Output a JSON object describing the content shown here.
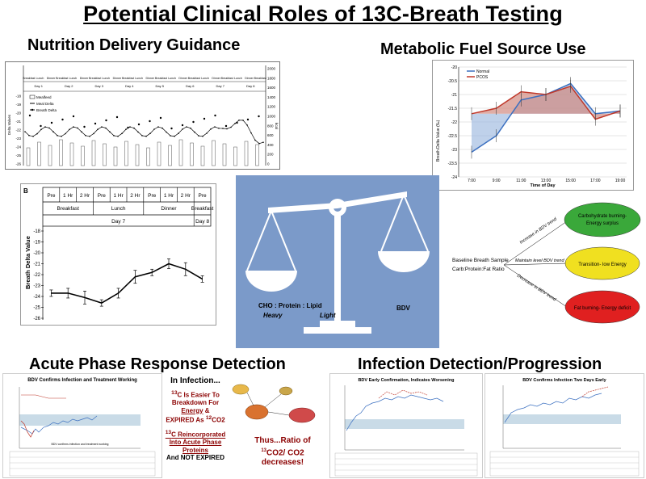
{
  "title": "Potential Clinical Roles of 13C-Breath Testing",
  "sections": {
    "nutrition": "Nutrition Delivery Guidance",
    "fuel": "Metabolic Fuel Source Use",
    "acute": "Acute Phase Response Detection",
    "infection": "Infection Detection/Progression"
  },
  "nutrition_chart": {
    "meals": [
      "Breakfast",
      "Lunch",
      "Dinner",
      "Breakfast",
      "Lunch",
      "Dinner",
      "Breakfast",
      "Lunch",
      "Dinner",
      "Breakfast",
      "Lunch",
      "Dinner",
      "Breakfast",
      "Lunch",
      "Dinner",
      "Breakfast",
      "Lunch",
      "Dinner",
      "Breakfast",
      "Lunch",
      "Dinner",
      "Breakfast"
    ],
    "days": [
      "Day 1",
      "Day 2",
      "Day 3",
      "Day 4",
      "Day 5",
      "Day 6",
      "Day 7",
      "Day 8"
    ],
    "legend": [
      "Mealfeed",
      "Meal Delta",
      "Breath Delta"
    ],
    "ylabel": "Delta Values",
    "y_ticks": [
      "-18",
      "-19",
      "-20",
      "-21",
      "-22",
      "-23",
      "-24",
      "-25",
      "-26"
    ],
    "y2_ticks": [
      "2000",
      "1800",
      "1600",
      "1400",
      "1200",
      "1000",
      "800",
      "600",
      "400",
      "200",
      "0"
    ],
    "y2label": "kcal"
  },
  "day7_chart": {
    "panel_letter": "B",
    "ylabel": "Breath Delta Value",
    "y_ticks": [
      "-18",
      "-19",
      "-20",
      "-21",
      "-22",
      "-23",
      "-24",
      "-25",
      "-26"
    ],
    "timepoints": [
      "Pre",
      "1 Hr",
      "2 Hr",
      "Pre",
      "1 Hr",
      "2 Hr",
      "Pre",
      "1 Hr",
      "2 Hr",
      "Pre"
    ],
    "meals": [
      "Breakfast",
      "Lunch",
      "Dinner",
      "Breakfast"
    ],
    "days": [
      "Day 7",
      "Day 8"
    ],
    "values": [
      -23.7,
      -23.7,
      -24.1,
      -24.6,
      -23.7,
      -22.2,
      -21.8,
      -21.0,
      -21.5,
      -22.4
    ]
  },
  "fuel_chart": {
    "legend": [
      "Normal",
      "PCOS"
    ],
    "ylabel": "Breath Delta Value (‰)",
    "xlabel": "Time of Day",
    "y_ticks": [
      "-20",
      "-20.5",
      "-21",
      "-21.5",
      "-22",
      "-22.5",
      "-23",
      "-23.5",
      "-24"
    ],
    "x_ticks": [
      "7:00",
      "9:00",
      "11:00",
      "13:00",
      "15:00",
      "17:00",
      "19:00"
    ],
    "normal": [
      -23.1,
      -22.5,
      -21.2,
      -21.0,
      -20.6,
      -21.7,
      -21.6
    ],
    "pcos": [
      -21.7,
      -21.5,
      -20.9,
      -21.0,
      -20.7,
      -21.9,
      -21.6
    ]
  },
  "scale": {
    "left_label": "CHO : Protein : Lipid",
    "heavy": "Heavy",
    "light": "Light",
    "right_label": "BDV"
  },
  "tree": {
    "root_line1": "Baseline Breath Sample",
    "root_line2": "Carb:Protein:Fat Ratio",
    "branch_up": "Increase in BDV trend",
    "branch_mid": "Maintain level BDV trend",
    "branch_down": "Decrease in BDV trend",
    "node_green": "Carbohydrate burning- Energy surplus",
    "node_yellow": "Transition- low Energy",
    "node_red": "Fat burning- Energy deficit",
    "colors": {
      "green": "#3aa83a",
      "yellow": "#f0e020",
      "red": "#e02020"
    }
  },
  "acute": {
    "chart_title": "BDV Confirms Infection and Treatment Working",
    "chart_note": "BDV confirms infection and treatment working",
    "infection_heading": "In Infection...",
    "line1": "C Is Easier To Breakdown For",
    "line1_sup": "13",
    "energy": "Energy",
    "amp": "&",
    "expired": "EXPIRED As",
    "co2": "CO2",
    "co2_sup": "12",
    "reinc_sup": "13",
    "reinc": "C Reincorporated Into Acute Phase Proteins",
    "reinc2": "And NOT EXPIRED",
    "thus": "Thus...Ratio of",
    "ratio": "CO2/ CO2",
    "ratio_sup1": "13",
    "ratio_sup2": "12",
    "decreases": "decreases!"
  },
  "infection": {
    "left_title": "BDV Early Confirmation, Indicates Worsening",
    "right_title": "BDV Confirms Infection Two Days Early"
  }
}
